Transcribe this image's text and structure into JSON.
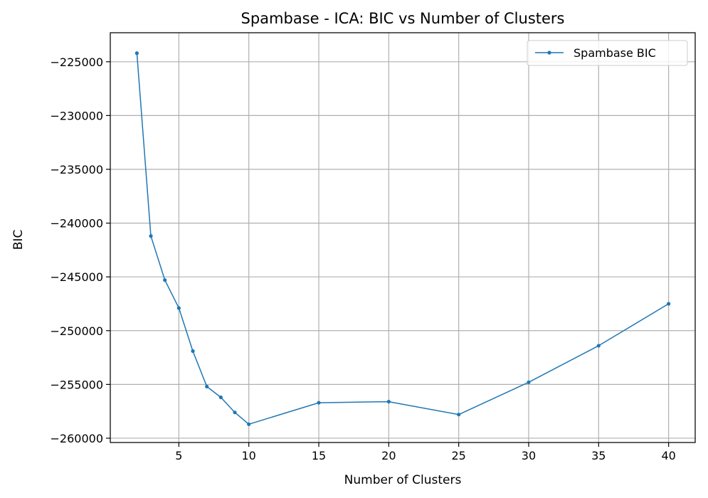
{
  "chart_data": {
    "type": "line",
    "title": "Spambase - ICA: BIC vs Number of Clusters",
    "xlabel": "Number of Clusters",
    "ylabel": "BIC",
    "xlim": [
      0.1,
      41.9
    ],
    "ylim": [
      -260400,
      -222300
    ],
    "xticks": [
      5,
      10,
      15,
      20,
      25,
      30,
      35,
      40
    ],
    "xtick_labels": [
      "5",
      "10",
      "15",
      "20",
      "25",
      "30",
      "35",
      "40"
    ],
    "yticks": [
      -225000,
      -230000,
      -235000,
      -240000,
      -245000,
      -250000,
      -255000,
      -260000
    ],
    "ytick_labels": [
      "−225000",
      "−230000",
      "−235000",
      "−240000",
      "−245000",
      "−250000",
      "−255000",
      "−260000"
    ],
    "grid": true,
    "legend_position": "top-right",
    "series": [
      {
        "name": "Spambase BIC",
        "color": "#1f77b4",
        "x": [
          2,
          3,
          4,
          5,
          6,
          7,
          8,
          9,
          10,
          15,
          20,
          25,
          30,
          35,
          40
        ],
        "y": [
          -224200,
          -241200,
          -245300,
          -247900,
          -251900,
          -255200,
          -256200,
          -257600,
          -258700,
          -256700,
          -256600,
          -257800,
          -254800,
          -251400,
          -247500
        ]
      }
    ]
  }
}
